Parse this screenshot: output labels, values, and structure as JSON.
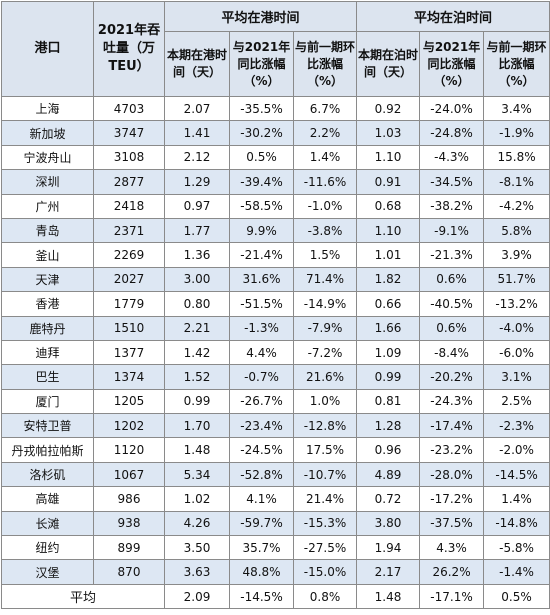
{
  "table": {
    "header": {
      "port": "港口",
      "throughput": "2021年吞吐量（万TEU）",
      "groups": [
        "平均在港时间",
        "平均在泊时间"
      ],
      "subheaders": [
        "本期在港时间（天）",
        "与2021年同比涨幅（%）",
        "与前一期环比涨幅（%）",
        "本期在泊时间（天）",
        "与2021年同比涨幅（%）",
        "与前一期环比涨幅（%）"
      ]
    },
    "rows": [
      [
        "上海",
        "4703",
        "2.07",
        "-35.5%",
        "6.7%",
        "0.92",
        "-24.0%",
        "3.4%"
      ],
      [
        "新加坡",
        "3747",
        "1.41",
        "-30.2%",
        "2.2%",
        "1.03",
        "-24.8%",
        "-1.9%"
      ],
      [
        "宁波舟山",
        "3108",
        "2.12",
        "0.5%",
        "1.4%",
        "1.10",
        "-4.3%",
        "15.8%"
      ],
      [
        "深圳",
        "2877",
        "1.29",
        "-39.4%",
        "-11.6%",
        "0.91",
        "-34.5%",
        "-8.1%"
      ],
      [
        "广州",
        "2418",
        "0.97",
        "-58.5%",
        "-1.0%",
        "0.68",
        "-38.2%",
        "-4.2%"
      ],
      [
        "青岛",
        "2371",
        "1.77",
        "9.9%",
        "-3.8%",
        "1.10",
        "-9.1%",
        "5.8%"
      ],
      [
        "釜山",
        "2269",
        "1.36",
        "-21.4%",
        "1.5%",
        "1.01",
        "-21.3%",
        "3.9%"
      ],
      [
        "天津",
        "2027",
        "3.00",
        "31.6%",
        "71.4%",
        "1.82",
        "0.6%",
        "51.7%"
      ],
      [
        "香港",
        "1779",
        "0.80",
        "-51.5%",
        "-14.9%",
        "0.66",
        "-40.5%",
        "-13.2%"
      ],
      [
        "鹿特丹",
        "1510",
        "2.21",
        "-1.3%",
        "-7.9%",
        "1.66",
        "0.6%",
        "-4.0%"
      ],
      [
        "迪拜",
        "1377",
        "1.42",
        "4.4%",
        "-7.2%",
        "1.09",
        "-8.4%",
        "-6.0%"
      ],
      [
        "巴生",
        "1374",
        "1.52",
        "-0.7%",
        "21.6%",
        "0.99",
        "-20.2%",
        "3.1%"
      ],
      [
        "厦门",
        "1205",
        "0.99",
        "-26.7%",
        "1.0%",
        "0.81",
        "-24.3%",
        "2.5%"
      ],
      [
        "安特卫普",
        "1202",
        "1.70",
        "-23.4%",
        "-12.8%",
        "1.28",
        "-17.4%",
        "-2.3%"
      ],
      [
        "丹戎帕拉帕斯",
        "1120",
        "1.48",
        "-24.5%",
        "17.5%",
        "0.96",
        "-23.2%",
        "-2.0%"
      ],
      [
        "洛杉矶",
        "1067",
        "5.34",
        "-52.8%",
        "-10.7%",
        "4.89",
        "-28.0%",
        "-14.5%"
      ],
      [
        "高雄",
        "986",
        "1.02",
        "4.1%",
        "21.4%",
        "0.72",
        "-17.2%",
        "1.4%"
      ],
      [
        "长滩",
        "938",
        "4.26",
        "-59.7%",
        "-15.3%",
        "3.80",
        "-37.5%",
        "-14.8%"
      ],
      [
        "纽约",
        "899",
        "3.50",
        "35.7%",
        "-27.5%",
        "1.94",
        "4.3%",
        "-5.8%"
      ],
      [
        "汉堡",
        "870",
        "3.63",
        "48.8%",
        "-15.0%",
        "2.17",
        "26.2%",
        "-1.4%"
      ]
    ],
    "average": {
      "label": "平均",
      "values": [
        "2.09",
        "-14.5%",
        "0.8%",
        "1.48",
        "-17.1%",
        "0.5%"
      ]
    }
  }
}
